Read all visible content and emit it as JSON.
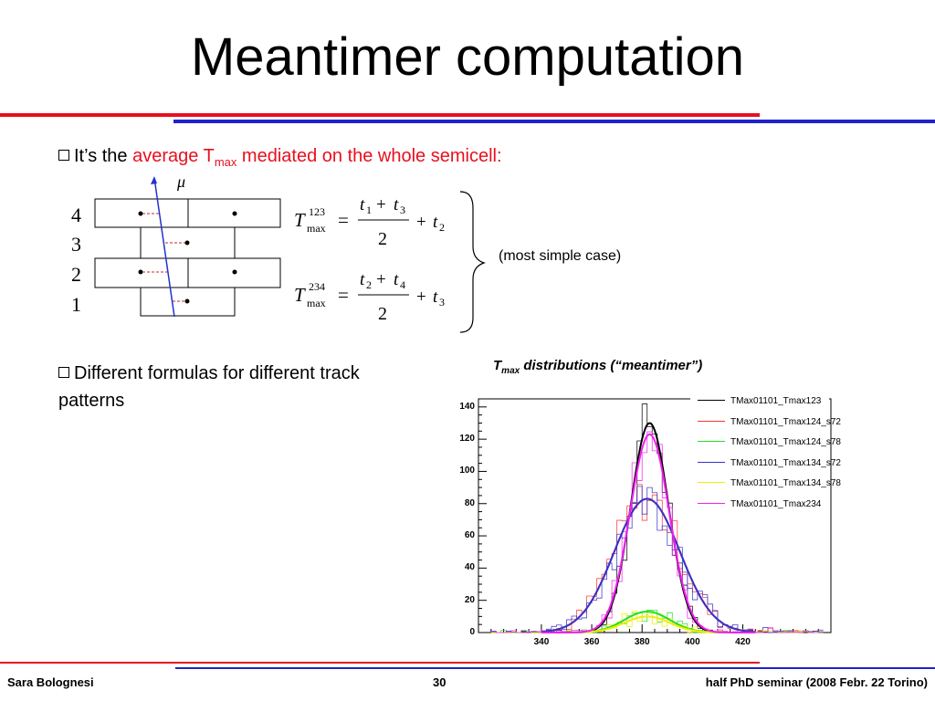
{
  "slide": {
    "title": "Meantimer computation",
    "bullet1": {
      "prefix": "It’s the ",
      "red_text": "average T",
      "red_sub": "max",
      "red_tail": " mediated on the whole semicell:"
    },
    "bullet2": "Different formulas for different track patterns",
    "note": "(most simple case)",
    "diagram": {
      "layers": [
        "4",
        "3",
        "2",
        "1"
      ],
      "muon": "μ"
    },
    "formulas": [
      {
        "T": "T",
        "sup": "123",
        "sub": "max",
        "eq": "=",
        "n1": "t",
        "n1s": "1",
        "plus": "+",
        "n2": "t",
        "n2s": "3",
        "den": "2",
        "tail": "+",
        "t": "t",
        "ts": "2"
      },
      {
        "T": "T",
        "sup": "234",
        "sub": "max",
        "eq": "=",
        "n1": "t",
        "n1s": "2",
        "plus": "+",
        "n2": "t",
        "n2s": "4",
        "den": "2",
        "tail": "+",
        "t": "t",
        "ts": "3"
      }
    ],
    "chart_caption": {
      "T": "T",
      "sub": "max",
      "rest": " distributions (“meantimer”)"
    },
    "footer": {
      "left": "Sara Bolognesi",
      "center": "30",
      "right": "half PhD seminar (2008 Febr. 22 Torino)"
    },
    "colors": {
      "red": "#e8101e",
      "blue": "#2233cc",
      "accent_line": "#e8101e",
      "accent_line2": "#2222cc"
    }
  },
  "chart_data": {
    "type": "line",
    "title": "",
    "xlabel": "",
    "ylabel": "",
    "xlim": [
      315,
      455
    ],
    "ylim": [
      0,
      145
    ],
    "xticks": [
      340,
      360,
      380,
      400,
      420
    ],
    "yticks": [
      0,
      20,
      40,
      60,
      80,
      100,
      120,
      140
    ],
    "legend_position": "top-right",
    "series": [
      {
        "name": "TMax01101_Tmax123",
        "color": "#000000",
        "mean": 383,
        "sigma": 7.5,
        "peak": 130
      },
      {
        "name": "TMax01101_Tmax124_s72",
        "color": "#ff3333",
        "mean": 382,
        "sigma": 13,
        "peak": 83
      },
      {
        "name": "TMax01101_Tmax124_s78",
        "color": "#22dd22",
        "mean": 382,
        "sigma": 9,
        "peak": 13
      },
      {
        "name": "TMax01101_Tmax134_s72",
        "color": "#3333cc",
        "mean": 382,
        "sigma": 13,
        "peak": 83
      },
      {
        "name": "TMax01101_Tmax134_s78",
        "color": "#eeee00",
        "mean": 382,
        "sigma": 9,
        "peak": 10
      },
      {
        "name": "TMax01101_Tmax234",
        "color": "#ee22ee",
        "mean": 383,
        "sigma": 7.8,
        "peak": 123
      }
    ]
  }
}
